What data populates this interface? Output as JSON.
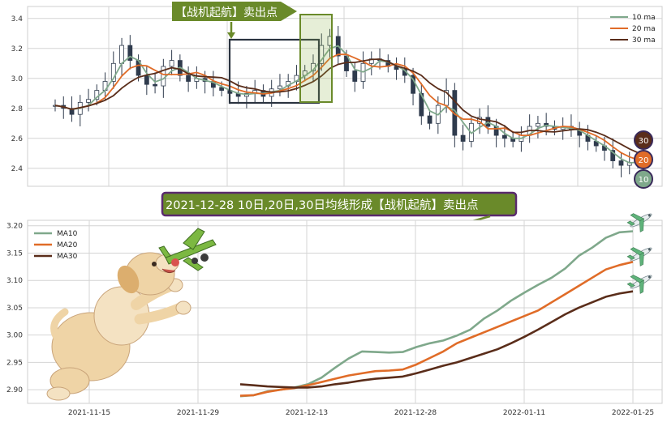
{
  "colors": {
    "ma10": "#7fa88b",
    "ma20": "#e06c28",
    "ma30": "#5a2d1a",
    "candle": "#2f3b4d",
    "grid": "#d4d4d4",
    "banner_green": "#6a8a2a",
    "banner_purple": "#5a2a6e"
  },
  "top_banner": {
    "text": "【战机起航】卖出点"
  },
  "mid_banner": {
    "text": "2021-12-28 10日,20日,30日均线形成【战机起航】卖出点"
  },
  "badges": [
    {
      "label": "30",
      "color": "#5a2d1a"
    },
    {
      "label": "20",
      "color": "#e06c28"
    },
    {
      "label": "10",
      "color": "#7fa88b"
    }
  ],
  "chart_data": [
    {
      "type": "line",
      "panel": "top",
      "ylim": [
        2.28,
        3.48
      ],
      "yticks": [
        "2.4",
        "2.6",
        "2.8",
        "3.0",
        "3.2",
        "3.4"
      ],
      "legend": {
        "placement": "top-right",
        "entries": [
          "10 ma",
          "20 ma",
          "30 ma"
        ]
      },
      "grid": true,
      "candles_close_approx": [
        2.82,
        2.8,
        2.76,
        2.84,
        2.86,
        2.92,
        2.98,
        3.1,
        3.22,
        3.12,
        3.02,
        2.96,
        2.95,
        3.08,
        3.12,
        3.02,
        2.98,
        3.0,
        2.98,
        2.94,
        2.92,
        2.9,
        2.88,
        2.9,
        2.92,
        2.88,
        2.93,
        2.95,
        2.98,
        3.02,
        3.05,
        3.1,
        3.22,
        3.28,
        3.15,
        3.05,
        2.98,
        3.1,
        3.13,
        3.12,
        3.08,
        3.06,
        3.02,
        2.9,
        2.75,
        2.7,
        2.82,
        2.92,
        2.62,
        2.58,
        2.7,
        2.74,
        2.68,
        2.62,
        2.6,
        2.58,
        2.62,
        2.68,
        2.7,
        2.68,
        2.66,
        2.68,
        2.66,
        2.62,
        2.58,
        2.55,
        2.52,
        2.45,
        2.42,
        2.44,
        2.46
      ]
    },
    {
      "type": "line",
      "panel": "bottom",
      "x_labels": [
        "2021-11-15",
        "2021-11-29",
        "2021-12-13",
        "2021-12-28",
        "2022-01-11",
        "2022-01-25"
      ],
      "ylim": [
        2.875,
        3.21
      ],
      "yticks": [
        "2.90",
        "2.95",
        "3.00",
        "3.05",
        "3.10",
        "3.15",
        "3.20"
      ],
      "legend": {
        "placement": "top-left"
      },
      "grid": true,
      "series": [
        {
          "name": "MA10",
          "values": [
            2.888,
            2.89,
            2.897,
            2.9,
            2.904,
            2.91,
            2.922,
            2.94,
            2.957,
            2.97,
            2.969,
            2.968,
            2.969,
            2.978,
            2.985,
            2.99,
            2.999,
            3.01,
            3.03,
            3.045,
            3.063,
            3.078,
            3.092,
            3.105,
            3.122,
            3.145,
            3.16,
            3.178,
            3.188,
            3.19
          ]
        },
        {
          "name": "MA20",
          "values": [
            2.889,
            2.89,
            2.896,
            2.9,
            2.903,
            2.908,
            2.914,
            2.92,
            2.926,
            2.93,
            2.934,
            2.935,
            2.937,
            2.946,
            2.958,
            2.97,
            2.985,
            2.995,
            3.005,
            3.015,
            3.025,
            3.035,
            3.045,
            3.06,
            3.075,
            3.09,
            3.105,
            3.12,
            3.128,
            3.134
          ]
        },
        {
          "name": "MA30",
          "values": [
            2.91,
            2.908,
            2.906,
            2.905,
            2.904,
            2.904,
            2.906,
            2.91,
            2.913,
            2.917,
            2.92,
            2.922,
            2.924,
            2.93,
            2.937,
            2.944,
            2.95,
            2.958,
            2.966,
            2.974,
            2.985,
            2.997,
            3.01,
            3.024,
            3.038,
            3.05,
            3.06,
            3.07,
            3.076,
            3.08
          ]
        }
      ]
    }
  ]
}
